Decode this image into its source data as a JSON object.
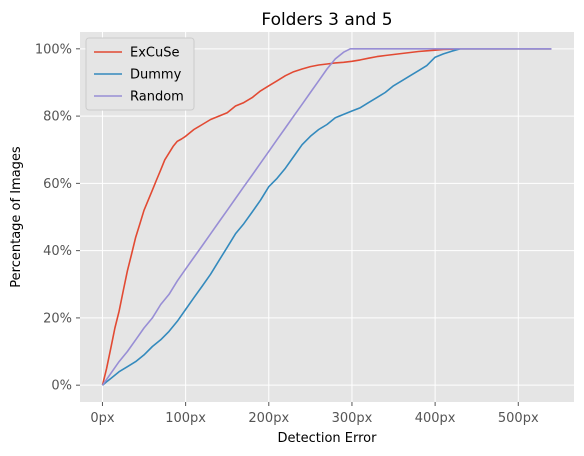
{
  "chart_data": {
    "type": "line",
    "title": "Folders 3 and 5",
    "xlabel": "Detection Error",
    "ylabel": "Percentage of Images",
    "xlim": [
      -27,
      567
    ],
    "ylim": [
      -5,
      105
    ],
    "xticks": [
      0,
      100,
      200,
      300,
      400,
      500
    ],
    "xtick_labels": [
      "0px",
      "100px",
      "200px",
      "300px",
      "400px",
      "500px"
    ],
    "yticks": [
      0,
      20,
      40,
      60,
      80,
      100
    ],
    "ytick_labels": [
      "0%",
      "20%",
      "40%",
      "60%",
      "80%",
      "100%"
    ],
    "grid": true,
    "legend_position": "top-left",
    "series": [
      {
        "name": "ExCuSe",
        "color": "#E24A33",
        "points": [
          [
            0,
            0
          ],
          [
            5,
            5
          ],
          [
            10,
            11
          ],
          [
            15,
            17
          ],
          [
            20,
            22
          ],
          [
            25,
            28
          ],
          [
            30,
            34
          ],
          [
            35,
            39
          ],
          [
            40,
            44
          ],
          [
            45,
            48
          ],
          [
            50,
            52
          ],
          [
            55,
            55
          ],
          [
            60,
            58
          ],
          [
            65,
            61
          ],
          [
            70,
            64
          ],
          [
            75,
            67
          ],
          [
            80,
            69
          ],
          [
            85,
            71
          ],
          [
            90,
            72.5
          ],
          [
            95,
            73.2
          ],
          [
            100,
            74
          ],
          [
            110,
            76
          ],
          [
            120,
            77.5
          ],
          [
            130,
            79
          ],
          [
            140,
            80
          ],
          [
            150,
            81
          ],
          [
            160,
            83
          ],
          [
            170,
            84
          ],
          [
            180,
            85.5
          ],
          [
            190,
            87.5
          ],
          [
            200,
            89
          ],
          [
            210,
            90.5
          ],
          [
            220,
            92
          ],
          [
            230,
            93.2
          ],
          [
            240,
            94
          ],
          [
            250,
            94.7
          ],
          [
            260,
            95.2
          ],
          [
            270,
            95.5
          ],
          [
            280,
            95.8
          ],
          [
            290,
            96
          ],
          [
            300,
            96.3
          ],
          [
            310,
            96.7
          ],
          [
            320,
            97.2
          ],
          [
            330,
            97.7
          ],
          [
            340,
            98
          ],
          [
            350,
            98.3
          ],
          [
            360,
            98.6
          ],
          [
            370,
            98.9
          ],
          [
            380,
            99.2
          ],
          [
            390,
            99.4
          ],
          [
            400,
            99.6
          ],
          [
            410,
            99.8
          ],
          [
            420,
            99.9
          ],
          [
            430,
            100
          ],
          [
            540,
            100
          ]
        ]
      },
      {
        "name": "Dummy",
        "color": "#348ABD",
        "points": [
          [
            0,
            0
          ],
          [
            5,
            1
          ],
          [
            10,
            2
          ],
          [
            20,
            4
          ],
          [
            30,
            5.5
          ],
          [
            40,
            7
          ],
          [
            50,
            9
          ],
          [
            60,
            11.5
          ],
          [
            70,
            13.5
          ],
          [
            80,
            16
          ],
          [
            90,
            19
          ],
          [
            100,
            22.5
          ],
          [
            110,
            26
          ],
          [
            120,
            29.5
          ],
          [
            130,
            33
          ],
          [
            140,
            37
          ],
          [
            150,
            41
          ],
          [
            160,
            45
          ],
          [
            170,
            48
          ],
          [
            180,
            51.5
          ],
          [
            190,
            55
          ],
          [
            200,
            59
          ],
          [
            210,
            61.5
          ],
          [
            220,
            64.5
          ],
          [
            230,
            68
          ],
          [
            240,
            71.5
          ],
          [
            250,
            74
          ],
          [
            260,
            76
          ],
          [
            270,
            77.5
          ],
          [
            280,
            79.5
          ],
          [
            290,
            80.5
          ],
          [
            300,
            81.5
          ],
          [
            310,
            82.5
          ],
          [
            320,
            84
          ],
          [
            330,
            85.5
          ],
          [
            340,
            87
          ],
          [
            350,
            89
          ],
          [
            360,
            90.5
          ],
          [
            370,
            92
          ],
          [
            380,
            93.5
          ],
          [
            390,
            95
          ],
          [
            400,
            97.5
          ],
          [
            410,
            98.5
          ],
          [
            420,
            99.3
          ],
          [
            430,
            100
          ],
          [
            540,
            100
          ]
        ]
      },
      {
        "name": "Random",
        "color": "#988ED5",
        "points": [
          [
            0,
            0
          ],
          [
            10,
            3.5
          ],
          [
            20,
            7
          ],
          [
            30,
            10
          ],
          [
            40,
            13.5
          ],
          [
            50,
            17
          ],
          [
            60,
            20
          ],
          [
            70,
            24
          ],
          [
            80,
            27
          ],
          [
            90,
            31
          ],
          [
            100,
            34.5
          ],
          [
            110,
            38
          ],
          [
            120,
            41.5
          ],
          [
            130,
            45
          ],
          [
            140,
            48.5
          ],
          [
            150,
            52
          ],
          [
            160,
            55.5
          ],
          [
            170,
            59
          ],
          [
            180,
            62.5
          ],
          [
            190,
            66
          ],
          [
            200,
            69.5
          ],
          [
            210,
            73
          ],
          [
            220,
            76.5
          ],
          [
            230,
            80
          ],
          [
            240,
            83.5
          ],
          [
            250,
            87
          ],
          [
            260,
            90.5
          ],
          [
            270,
            94
          ],
          [
            280,
            97
          ],
          [
            290,
            99
          ],
          [
            298,
            100
          ],
          [
            540,
            100
          ]
        ]
      }
    ]
  }
}
